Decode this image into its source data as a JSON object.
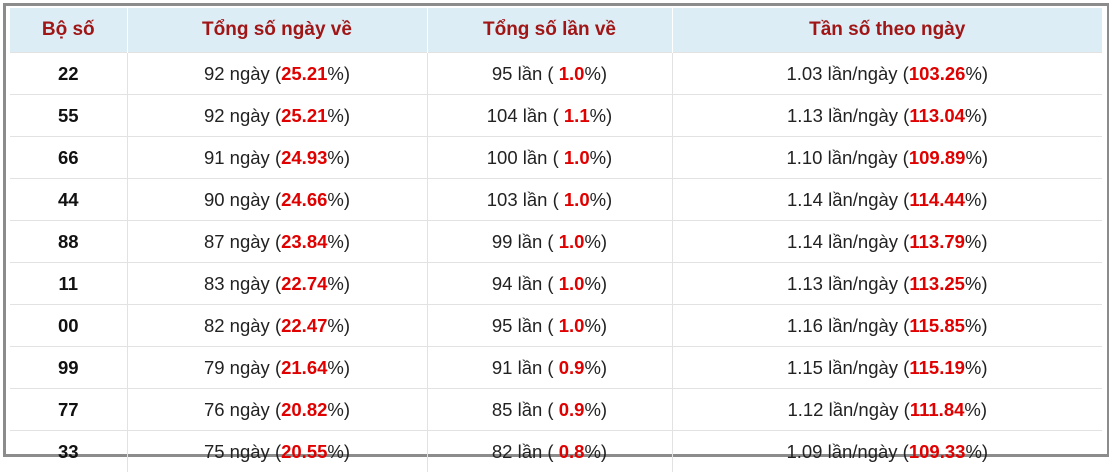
{
  "table": {
    "header": [
      "Bộ số",
      "Tổng số ngày về",
      "Tổng số lần về",
      "Tần số theo ngày"
    ],
    "rows": [
      [
        "22",
        {
          "before": "92 ngày (",
          "highlight": "25.21",
          "after": "%)"
        },
        {
          "before": "95 lần ( ",
          "highlight": "1.0",
          "after": "%)"
        },
        {
          "before": "1.03 lần/ngày (",
          "highlight": "103.26",
          "after": "%)"
        }
      ],
      [
        "55",
        {
          "before": "92 ngày (",
          "highlight": "25.21",
          "after": "%)"
        },
        {
          "before": "104 lần ( ",
          "highlight": "1.1",
          "after": "%)"
        },
        {
          "before": "1.13 lần/ngày (",
          "highlight": "113.04",
          "after": "%)"
        }
      ],
      [
        "66",
        {
          "before": "91 ngày (",
          "highlight": "24.93",
          "after": "%)"
        },
        {
          "before": "100 lần ( ",
          "highlight": "1.0",
          "after": "%)"
        },
        {
          "before": "1.10 lần/ngày (",
          "highlight": "109.89",
          "after": "%)"
        }
      ],
      [
        "44",
        {
          "before": "90 ngày (",
          "highlight": "24.66",
          "after": "%)"
        },
        {
          "before": "103 lần ( ",
          "highlight": "1.0",
          "after": "%)"
        },
        {
          "before": "1.14 lần/ngày (",
          "highlight": "114.44",
          "after": "%)"
        }
      ],
      [
        "88",
        {
          "before": "87 ngày (",
          "highlight": "23.84",
          "after": "%)"
        },
        {
          "before": "99 lần ( ",
          "highlight": "1.0",
          "after": "%)"
        },
        {
          "before": "1.14 lần/ngày (",
          "highlight": "113.79",
          "after": "%)"
        }
      ],
      [
        "11",
        {
          "before": "83 ngày (",
          "highlight": "22.74",
          "after": "%)"
        },
        {
          "before": "94 lần ( ",
          "highlight": "1.0",
          "after": "%)"
        },
        {
          "before": "1.13 lần/ngày (",
          "highlight": "113.25",
          "after": "%)"
        }
      ],
      [
        "00",
        {
          "before": "82 ngày (",
          "highlight": "22.47",
          "after": "%)"
        },
        {
          "before": "95 lần ( ",
          "highlight": "1.0",
          "after": "%)"
        },
        {
          "before": "1.16 lần/ngày (",
          "highlight": "115.85",
          "after": "%)"
        }
      ],
      [
        "99",
        {
          "before": "79 ngày (",
          "highlight": "21.64",
          "after": "%)"
        },
        {
          "before": "91 lần ( ",
          "highlight": "0.9",
          "after": "%)"
        },
        {
          "before": "1.15 lần/ngày (",
          "highlight": "115.19",
          "after": "%)"
        }
      ],
      [
        "77",
        {
          "before": "76 ngày (",
          "highlight": "20.82",
          "after": "%)"
        },
        {
          "before": "85 lần ( ",
          "highlight": "0.9",
          "after": "%)"
        },
        {
          "before": "1.12 lần/ngày (",
          "highlight": "111.84",
          "after": "%)"
        }
      ],
      [
        "33",
        {
          "before": "75 ngày (",
          "highlight": "20.55",
          "after": "%)"
        },
        {
          "before": "82 lần ( ",
          "highlight": "0.8",
          "after": "%)"
        },
        {
          "before": "1.09 lần/ngày (",
          "highlight": "109.33",
          "after": "%)"
        }
      ]
    ]
  }
}
